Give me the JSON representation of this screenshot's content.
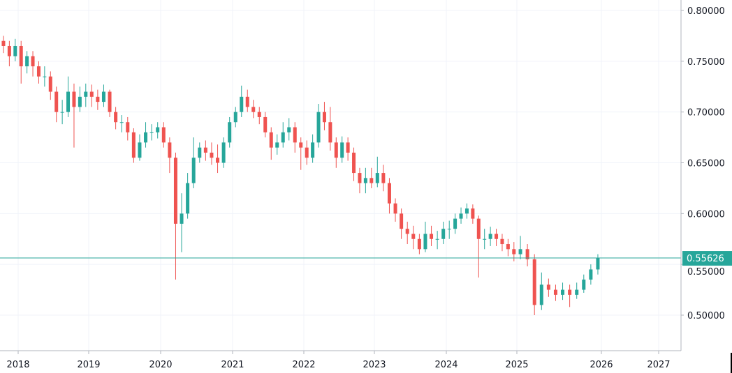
{
  "chart_data": {
    "type": "candlestick",
    "title": "",
    "interval": "1M",
    "start": "2017-10",
    "candle_format": [
      "open",
      "high",
      "low",
      "close"
    ],
    "candles": [
      [
        0.77,
        0.775,
        0.758,
        0.765
      ],
      [
        0.765,
        0.77,
        0.745,
        0.755
      ],
      [
        0.755,
        0.772,
        0.75,
        0.765
      ],
      [
        0.765,
        0.77,
        0.728,
        0.745
      ],
      [
        0.745,
        0.76,
        0.738,
        0.755
      ],
      [
        0.755,
        0.76,
        0.735,
        0.745
      ],
      [
        0.745,
        0.75,
        0.728,
        0.735
      ],
      [
        0.735,
        0.745,
        0.725,
        0.735
      ],
      [
        0.735,
        0.74,
        0.712,
        0.72
      ],
      [
        0.72,
        0.725,
        0.69,
        0.7
      ],
      [
        0.7,
        0.712,
        0.688,
        0.7
      ],
      [
        0.7,
        0.735,
        0.695,
        0.72
      ],
      [
        0.72,
        0.728,
        0.665,
        0.705
      ],
      [
        0.705,
        0.725,
        0.7,
        0.715
      ],
      [
        0.715,
        0.728,
        0.705,
        0.72
      ],
      [
        0.72,
        0.727,
        0.705,
        0.715
      ],
      [
        0.715,
        0.722,
        0.702,
        0.71
      ],
      [
        0.71,
        0.727,
        0.705,
        0.72
      ],
      [
        0.72,
        0.722,
        0.695,
        0.7
      ],
      [
        0.7,
        0.705,
        0.683,
        0.69
      ],
      [
        0.69,
        0.697,
        0.68,
        0.69
      ],
      [
        0.69,
        0.695,
        0.672,
        0.68
      ],
      [
        0.68,
        0.684,
        0.65,
        0.655
      ],
      [
        0.655,
        0.678,
        0.652,
        0.67
      ],
      [
        0.67,
        0.69,
        0.665,
        0.68
      ],
      [
        0.68,
        0.688,
        0.672,
        0.68
      ],
      [
        0.68,
        0.69,
        0.674,
        0.685
      ],
      [
        0.685,
        0.69,
        0.665,
        0.67
      ],
      [
        0.67,
        0.675,
        0.64,
        0.655
      ],
      [
        0.655,
        0.66,
        0.535,
        0.59
      ],
      [
        0.59,
        0.62,
        0.562,
        0.6
      ],
      [
        0.6,
        0.64,
        0.595,
        0.63
      ],
      [
        0.63,
        0.675,
        0.625,
        0.655
      ],
      [
        0.655,
        0.67,
        0.65,
        0.665
      ],
      [
        0.665,
        0.672,
        0.652,
        0.66
      ],
      [
        0.66,
        0.67,
        0.648,
        0.655
      ],
      [
        0.655,
        0.668,
        0.64,
        0.65
      ],
      [
        0.65,
        0.675,
        0.645,
        0.67
      ],
      [
        0.67,
        0.695,
        0.665,
        0.69
      ],
      [
        0.69,
        0.705,
        0.685,
        0.7
      ],
      [
        0.7,
        0.726,
        0.695,
        0.715
      ],
      [
        0.715,
        0.722,
        0.7,
        0.705
      ],
      [
        0.705,
        0.712,
        0.694,
        0.7
      ],
      [
        0.7,
        0.705,
        0.688,
        0.695
      ],
      [
        0.695,
        0.7,
        0.675,
        0.68
      ],
      [
        0.68,
        0.685,
        0.653,
        0.665
      ],
      [
        0.665,
        0.678,
        0.658,
        0.67
      ],
      [
        0.67,
        0.69,
        0.665,
        0.68
      ],
      [
        0.68,
        0.694,
        0.672,
        0.685
      ],
      [
        0.685,
        0.69,
        0.66,
        0.67
      ],
      [
        0.67,
        0.675,
        0.643,
        0.665
      ],
      [
        0.665,
        0.672,
        0.648,
        0.655
      ],
      [
        0.655,
        0.678,
        0.65,
        0.67
      ],
      [
        0.67,
        0.708,
        0.665,
        0.7
      ],
      [
        0.7,
        0.71,
        0.682,
        0.69
      ],
      [
        0.69,
        0.705,
        0.662,
        0.67
      ],
      [
        0.67,
        0.675,
        0.645,
        0.655
      ],
      [
        0.655,
        0.676,
        0.65,
        0.67
      ],
      [
        0.67,
        0.675,
        0.652,
        0.66
      ],
      [
        0.66,
        0.665,
        0.632,
        0.64
      ],
      [
        0.64,
        0.645,
        0.62,
        0.63
      ],
      [
        0.63,
        0.645,
        0.62,
        0.635
      ],
      [
        0.635,
        0.645,
        0.625,
        0.63
      ],
      [
        0.63,
        0.656,
        0.626,
        0.64
      ],
      [
        0.64,
        0.648,
        0.622,
        0.63
      ],
      [
        0.63,
        0.635,
        0.6,
        0.61
      ],
      [
        0.61,
        0.615,
        0.592,
        0.6
      ],
      [
        0.6,
        0.605,
        0.575,
        0.585
      ],
      [
        0.585,
        0.592,
        0.57,
        0.58
      ],
      [
        0.58,
        0.588,
        0.565,
        0.575
      ],
      [
        0.575,
        0.58,
        0.56,
        0.565
      ],
      [
        0.565,
        0.592,
        0.562,
        0.58
      ],
      [
        0.58,
        0.588,
        0.568,
        0.575
      ],
      [
        0.575,
        0.583,
        0.565,
        0.575
      ],
      [
        0.575,
        0.592,
        0.57,
        0.585
      ],
      [
        0.585,
        0.593,
        0.575,
        0.585
      ],
      [
        0.585,
        0.6,
        0.58,
        0.595
      ],
      [
        0.595,
        0.606,
        0.59,
        0.6
      ],
      [
        0.6,
        0.61,
        0.595,
        0.605
      ],
      [
        0.605,
        0.609,
        0.59,
        0.595
      ],
      [
        0.595,
        0.598,
        0.537,
        0.575
      ],
      [
        0.575,
        0.585,
        0.565,
        0.575
      ],
      [
        0.575,
        0.587,
        0.568,
        0.58
      ],
      [
        0.58,
        0.585,
        0.568,
        0.575
      ],
      [
        0.575,
        0.58,
        0.563,
        0.57
      ],
      [
        0.57,
        0.575,
        0.558,
        0.565
      ],
      [
        0.565,
        0.572,
        0.553,
        0.56
      ],
      [
        0.56,
        0.578,
        0.555,
        0.565
      ],
      [
        0.565,
        0.57,
        0.548,
        0.555
      ],
      [
        0.555,
        0.56,
        0.5,
        0.51
      ],
      [
        0.51,
        0.542,
        0.505,
        0.53
      ],
      [
        0.53,
        0.536,
        0.518,
        0.525
      ],
      [
        0.525,
        0.53,
        0.514,
        0.52
      ],
      [
        0.52,
        0.532,
        0.515,
        0.525
      ],
      [
        0.525,
        0.53,
        0.508,
        0.52
      ],
      [
        0.52,
        0.532,
        0.516,
        0.525
      ],
      [
        0.525,
        0.54,
        0.522,
        0.535
      ],
      [
        0.535,
        0.55,
        0.53,
        0.545
      ],
      [
        0.545,
        0.56,
        0.54,
        0.556
      ]
    ],
    "x_ticks": [
      "2018",
      "2019",
      "2020",
      "2021",
      "2022",
      "2023",
      "2024",
      "2025",
      "2026",
      "2027"
    ],
    "y_ticks": [
      "0.80000",
      "0.75000",
      "0.70000",
      "0.65000",
      "0.60000",
      "0.55000",
      "0.50000"
    ],
    "y_tick_values": [
      0.8,
      0.75,
      0.7,
      0.65,
      0.6,
      0.55,
      0.5
    ],
    "ylim": [
      0.465,
      0.8053
    ],
    "last_price": 0.55626,
    "last_price_label": "0.55626",
    "grid": true,
    "colors": {
      "up": "#26a69a",
      "down": "#ef5350",
      "price_line": "#26a69a",
      "grid": "#f0f3fa",
      "axis": "#b2b5be"
    }
  }
}
